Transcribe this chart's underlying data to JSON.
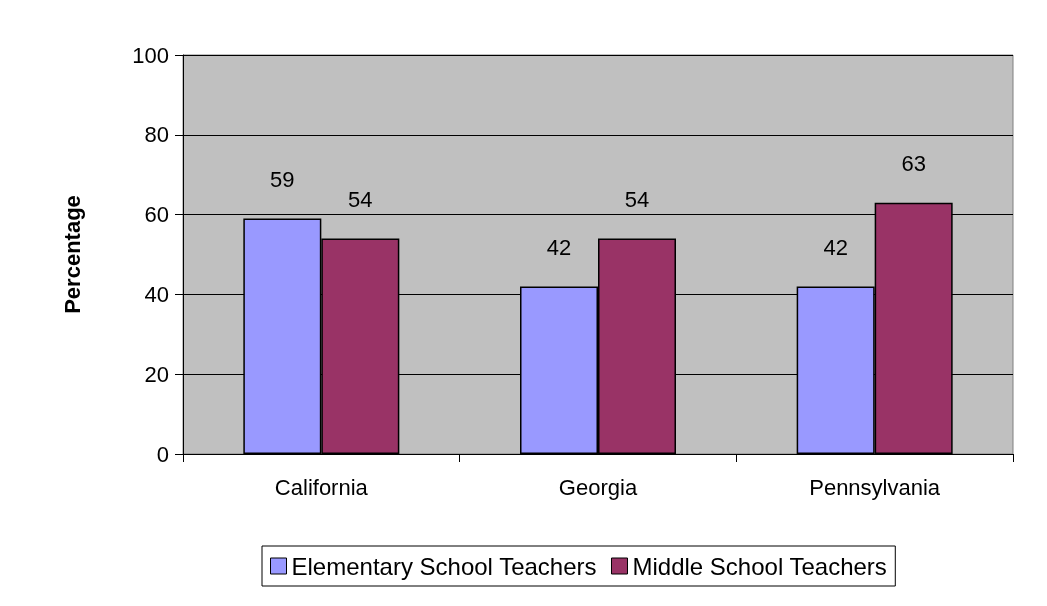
{
  "chart_data": {
    "type": "bar",
    "ylabel": "Percentage",
    "categories": [
      "California",
      "Georgia",
      "Pennsylvania"
    ],
    "series": [
      {
        "name": "Elementary School Teachers",
        "color": "#9999ff",
        "values": [
          59,
          42,
          42
        ]
      },
      {
        "name": "Middle School Teachers",
        "color": "#993366",
        "values": [
          54,
          54,
          63
        ]
      }
    ],
    "ylim": [
      0,
      100
    ],
    "yticks": [
      0,
      20,
      40,
      60,
      80,
      100
    ],
    "grid": "y",
    "legend": "bottom",
    "data_labels": true
  }
}
